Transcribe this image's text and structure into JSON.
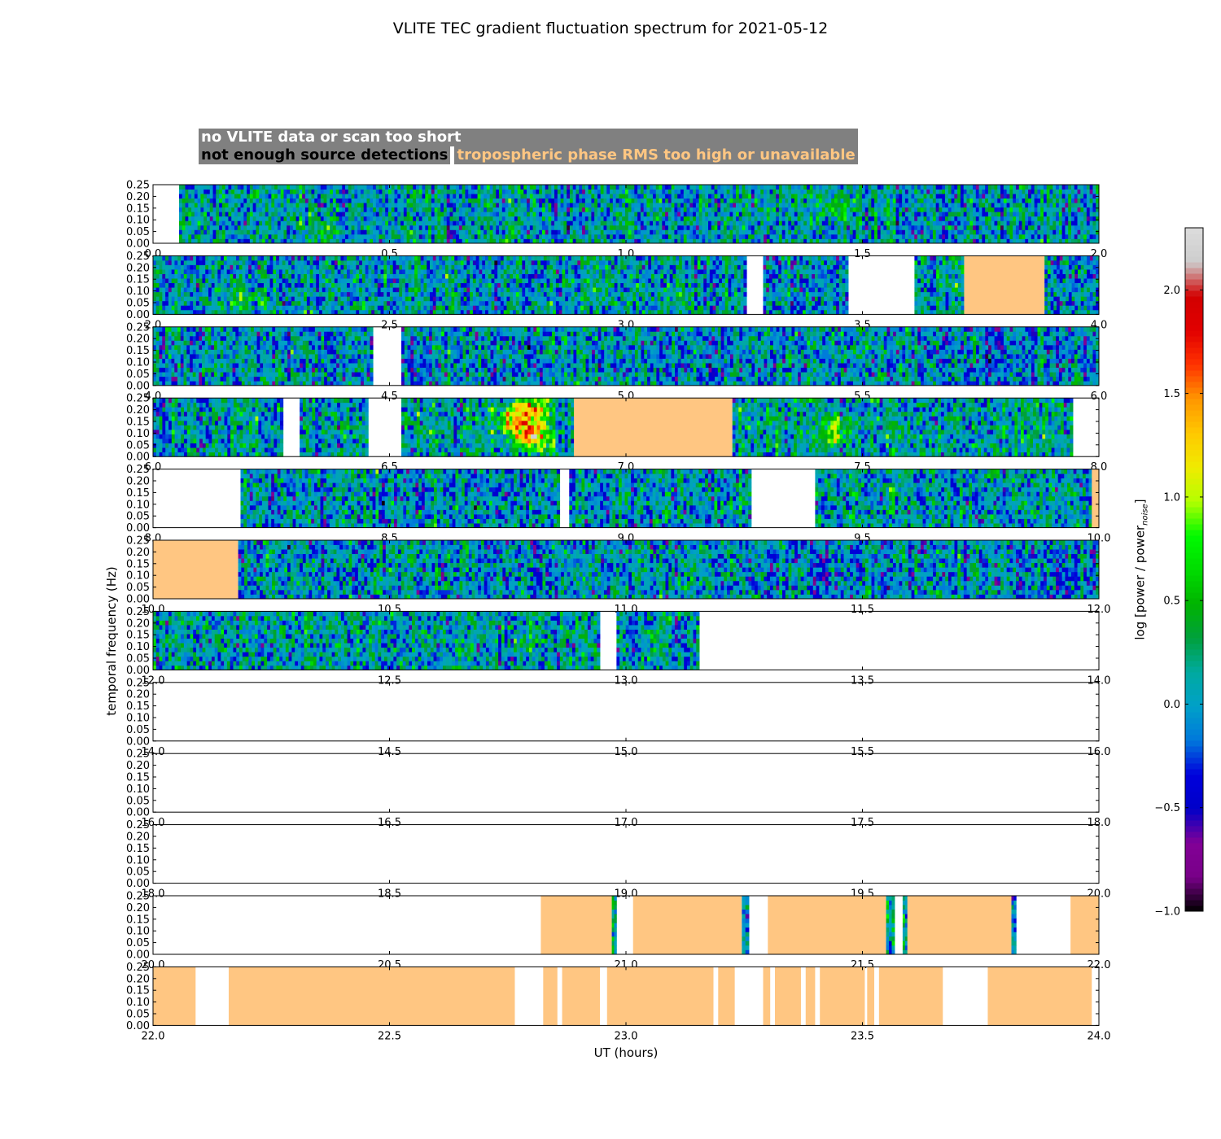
{
  "chart_data": {
    "type": "heatmap",
    "title": "VLITE TEC gradient fluctuation spectrum for 2021-05-12",
    "xlabel": "UT (hours)",
    "ylabel": "temporal frequency (Hz)",
    "ylim": [
      0,
      0.25
    ],
    "y_ticks": [
      "0.00",
      "0.05",
      "0.10",
      "0.15",
      "0.20",
      "0.25"
    ],
    "colorbar": {
      "label": "log [power / power",
      "label_subscript": "noise",
      "label_suffix": "]",
      "range": [
        -1.0,
        2.3
      ],
      "ticks": [
        "−1.0",
        "−0.5",
        "0.0",
        "0.5",
        "1.0",
        "1.5",
        "2.0"
      ],
      "tick_values": [
        -1.0,
        -0.5,
        0.0,
        0.5,
        1.0,
        1.5,
        2.0
      ],
      "colormap": "nipy_spectral"
    },
    "legend": [
      {
        "label": "no VLITE data or scan too short",
        "color": "#ffffff"
      },
      {
        "label": "not enough source detections",
        "color": "#000000"
      },
      {
        "label": "tropospheric phase RMS too high or unavailable",
        "color": "#ffc682"
      }
    ],
    "legend_background": "#808080",
    "panels": [
      {
        "x_range": [
          0.0,
          2.0
        ],
        "x_ticks": [
          "0.0",
          "0.5",
          "1.0",
          "1.5",
          "2.0"
        ],
        "segments": [
          {
            "start": 0.055,
            "end": 2.0,
            "status": "data",
            "mean": 0.05
          }
        ],
        "hotspots": [
          {
            "t": 0.36,
            "f": 0.04,
            "value": 0.5
          },
          {
            "t": 1.44,
            "f": 0.15,
            "value": 0.45
          }
        ]
      },
      {
        "x_range": [
          2.0,
          4.0
        ],
        "x_ticks": [
          "2.0",
          "2.5",
          "3.0",
          "3.5",
          "4.0"
        ],
        "segments": [
          {
            "start": 2.0,
            "end": 3.255,
            "status": "data",
            "mean": 0.05
          },
          {
            "start": 3.29,
            "end": 3.47,
            "status": "data",
            "mean": 0.0
          },
          {
            "start": 3.61,
            "end": 3.715,
            "status": "data",
            "mean": 0.05
          },
          {
            "start": 3.715,
            "end": 3.885,
            "status": "troposphere"
          },
          {
            "start": 3.885,
            "end": 4.0,
            "status": "data",
            "mean": 0.0
          }
        ],
        "hotspots": [
          {
            "t": 2.19,
            "f": 0.06,
            "value": 0.55
          }
        ]
      },
      {
        "x_range": [
          4.0,
          6.0
        ],
        "x_ticks": [
          "4.0",
          "4.5",
          "5.0",
          "5.5",
          "6.0"
        ],
        "segments": [
          {
            "start": 4.0,
            "end": 4.465,
            "status": "data",
            "mean": 0.0
          },
          {
            "start": 4.525,
            "end": 6.0,
            "status": "data",
            "mean": -0.02
          }
        ],
        "hotspots": []
      },
      {
        "x_range": [
          6.0,
          8.0
        ],
        "x_ticks": [
          "6.0",
          "6.5",
          "7.0",
          "7.5",
          "8.0"
        ],
        "segments": [
          {
            "start": 6.0,
            "end": 6.275,
            "status": "data",
            "mean": 0.05
          },
          {
            "start": 6.31,
            "end": 6.455,
            "status": "data",
            "mean": 0.05
          },
          {
            "start": 6.525,
            "end": 6.89,
            "status": "data",
            "mean": 0.1
          },
          {
            "start": 6.89,
            "end": 7.225,
            "status": "troposphere"
          },
          {
            "start": 7.225,
            "end": 7.945,
            "status": "data",
            "mean": 0.12
          }
        ],
        "hotspots": [
          {
            "t": 6.8,
            "f": 0.08,
            "value": 1.75
          },
          {
            "t": 6.76,
            "f": 0.15,
            "value": 1.25
          },
          {
            "t": 6.8,
            "f": 0.2,
            "value": 1.3
          },
          {
            "t": 7.44,
            "f": 0.1,
            "value": 0.9
          }
        ]
      },
      {
        "x_range": [
          8.0,
          10.0
        ],
        "x_ticks": [
          "8.0",
          "8.5",
          "9.0",
          "9.5",
          "10.0"
        ],
        "segments": [
          {
            "start": 8.185,
            "end": 8.86,
            "status": "data",
            "mean": 0.0
          },
          {
            "start": 8.88,
            "end": 9.265,
            "status": "data",
            "mean": 0.0
          },
          {
            "start": 9.4,
            "end": 9.985,
            "status": "data",
            "mean": 0.05
          },
          {
            "start": 9.985,
            "end": 10.0,
            "status": "troposphere"
          }
        ],
        "hotspots": []
      },
      {
        "x_range": [
          10.0,
          12.0
        ],
        "x_ticks": [
          "10.0",
          "10.5",
          "11.0",
          "11.5",
          "12.0"
        ],
        "segments": [
          {
            "start": 10.0,
            "end": 10.18,
            "status": "troposphere"
          },
          {
            "start": 10.18,
            "end": 12.0,
            "status": "data",
            "mean": 0.0
          }
        ],
        "hotspots": []
      },
      {
        "x_range": [
          12.0,
          14.0
        ],
        "x_ticks": [
          "12.0",
          "12.5",
          "13.0",
          "13.5",
          "14.0"
        ],
        "segments": [
          {
            "start": 12.0,
            "end": 12.945,
            "status": "data",
            "mean": 0.05
          },
          {
            "start": 12.98,
            "end": 13.155,
            "status": "data",
            "mean": 0.05
          }
        ],
        "hotspots": []
      },
      {
        "x_range": [
          14.0,
          16.0
        ],
        "x_ticks": [
          "14.0",
          "14.5",
          "15.0",
          "15.5",
          "16.0"
        ],
        "segments": [],
        "hotspots": []
      },
      {
        "x_range": [
          16.0,
          18.0
        ],
        "x_ticks": [
          "16.0",
          "16.5",
          "17.0",
          "17.5",
          "18.0"
        ],
        "segments": [],
        "hotspots": []
      },
      {
        "x_range": [
          18.0,
          20.0
        ],
        "x_ticks": [
          "18.0",
          "18.5",
          "19.0",
          "19.5",
          "20.0"
        ],
        "segments": [],
        "hotspots": []
      },
      {
        "x_range": [
          20.0,
          22.0
        ],
        "x_ticks": [
          "20.0",
          "20.5",
          "21.0",
          "21.5",
          "22.0"
        ],
        "segments": [
          {
            "start": 20.82,
            "end": 20.97,
            "status": "troposphere"
          },
          {
            "start": 20.97,
            "end": 20.98,
            "status": "data",
            "mean": 0.3
          },
          {
            "start": 21.015,
            "end": 21.245,
            "status": "troposphere"
          },
          {
            "start": 21.245,
            "end": 21.26,
            "status": "data",
            "mean": 0.1
          },
          {
            "start": 21.3,
            "end": 21.55,
            "status": "troposphere"
          },
          {
            "start": 21.55,
            "end": 21.568,
            "status": "data",
            "mean": 0.1
          },
          {
            "start": 21.585,
            "end": 21.595,
            "status": "data",
            "mean": 0.2
          },
          {
            "start": 21.595,
            "end": 21.815,
            "status": "troposphere"
          },
          {
            "start": 21.815,
            "end": 21.825,
            "status": "data",
            "mean": -0.1
          },
          {
            "start": 21.94,
            "end": 22.0,
            "status": "troposphere"
          }
        ],
        "hotspots": []
      },
      {
        "x_range": [
          22.0,
          24.0
        ],
        "x_ticks": [
          "22.0",
          "22.5",
          "23.0",
          "23.5",
          "24.0"
        ],
        "segments": [
          {
            "start": 22.0,
            "end": 22.09,
            "status": "troposphere"
          },
          {
            "start": 22.16,
            "end": 22.765,
            "status": "troposphere"
          },
          {
            "start": 22.825,
            "end": 22.855,
            "status": "troposphere"
          },
          {
            "start": 22.865,
            "end": 22.945,
            "status": "troposphere"
          },
          {
            "start": 22.96,
            "end": 23.185,
            "status": "troposphere"
          },
          {
            "start": 23.195,
            "end": 23.23,
            "status": "troposphere"
          },
          {
            "start": 23.29,
            "end": 23.305,
            "status": "troposphere"
          },
          {
            "start": 23.315,
            "end": 23.37,
            "status": "troposphere"
          },
          {
            "start": 23.38,
            "end": 23.4,
            "status": "troposphere"
          },
          {
            "start": 23.41,
            "end": 23.505,
            "status": "troposphere"
          },
          {
            "start": 23.51,
            "end": 23.525,
            "status": "troposphere"
          },
          {
            "start": 23.535,
            "end": 23.67,
            "status": "troposphere"
          },
          {
            "start": 23.765,
            "end": 23.985,
            "status": "troposphere"
          }
        ],
        "hotspots": []
      }
    ]
  }
}
